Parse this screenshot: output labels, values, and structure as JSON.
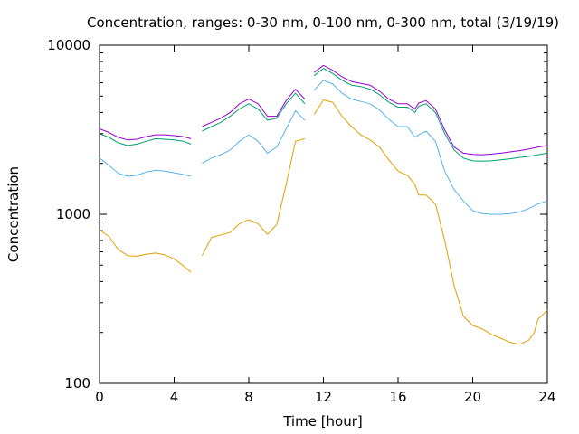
{
  "chart_data": {
    "type": "line",
    "title": "Concentration, ranges: 0-30 nm, 0-100 nm, 0-300 nm, total (3/19/19)",
    "xlabel": "Time [hour]",
    "ylabel": "Concentration",
    "xlim": [
      0,
      24
    ],
    "ylim": [
      100,
      10000
    ],
    "yscale": "log",
    "grid": false,
    "legend": "none",
    "x_ticks": [
      "0",
      "4",
      "8",
      "12",
      "16",
      "20",
      "24"
    ],
    "y_ticks": [
      "100",
      "1000",
      "10000"
    ],
    "series": [
      {
        "color": "#e69f00",
        "x": [
          0,
          0.5,
          1,
          1.5,
          2,
          2.5,
          3,
          3.5,
          4,
          4.5,
          4.9,
          5.2,
          5.5,
          6,
          6.5,
          7,
          7.5,
          8,
          8.5,
          9,
          9.5,
          10,
          10.5,
          11,
          11.2,
          11.5,
          12,
          12.5,
          13,
          13.5,
          14,
          14.5,
          15,
          15.5,
          16,
          16.5,
          16.9,
          17.1,
          17.5,
          18,
          18.5,
          19,
          19.5,
          20,
          20.5,
          21,
          21.5,
          22,
          22.5,
          23,
          23.3,
          23.5,
          24
        ],
        "y": [
          810,
          740,
          620,
          570,
          565,
          580,
          590,
          575,
          545,
          495,
          455,
          null,
          570,
          730,
          755,
          780,
          880,
          930,
          880,
          760,
          870,
          1500,
          2700,
          2800,
          null,
          3900,
          4750,
          4600,
          3800,
          3300,
          2950,
          2750,
          2500,
          2100,
          1800,
          1700,
          1500,
          1300,
          1300,
          1150,
          700,
          380,
          250,
          220,
          210,
          195,
          185,
          175,
          170,
          180,
          200,
          240,
          270
        ]
      },
      {
        "color": "#56b4e9",
        "x": [
          0,
          0.5,
          1,
          1.5,
          2,
          2.5,
          3,
          3.5,
          4,
          4.5,
          4.9,
          5.2,
          5.5,
          6,
          6.5,
          7,
          7.5,
          8,
          8.5,
          9,
          9.5,
          10,
          10.5,
          11,
          11.2,
          11.5,
          12,
          12.5,
          13,
          13.5,
          14,
          14.5,
          15,
          15.5,
          16,
          16.5,
          16.9,
          17.1,
          17.5,
          18,
          18.5,
          19,
          19.5,
          20,
          20.5,
          21,
          21.5,
          22,
          22.5,
          23,
          23.5,
          24
        ],
        "y": [
          2150,
          1950,
          1750,
          1680,
          1700,
          1780,
          1820,
          1800,
          1760,
          1720,
          1680,
          null,
          2000,
          2150,
          2250,
          2400,
          2700,
          2950,
          2700,
          2300,
          2500,
          3200,
          4100,
          3600,
          null,
          5400,
          6200,
          5900,
          5200,
          4800,
          4650,
          4500,
          4150,
          3650,
          3300,
          3300,
          2850,
          2950,
          3100,
          2700,
          1800,
          1400,
          1200,
          1050,
          1010,
          1000,
          1000,
          1010,
          1030,
          1080,
          1150,
          1200
        ]
      },
      {
        "color": "#009e73",
        "x": [
          0,
          0.5,
          1,
          1.5,
          2,
          2.5,
          3,
          3.5,
          4,
          4.5,
          4.9,
          5.2,
          5.5,
          6,
          6.5,
          7,
          7.5,
          8,
          8.5,
          9,
          9.5,
          10,
          10.5,
          11,
          11.2,
          11.5,
          12,
          12.5,
          13,
          13.5,
          14,
          14.5,
          15,
          15.5,
          16,
          16.5,
          16.9,
          17.1,
          17.5,
          18,
          18.5,
          19,
          19.5,
          20,
          20.5,
          21,
          21.5,
          22,
          22.5,
          23,
          23.5,
          24
        ],
        "y": [
          3000,
          2850,
          2650,
          2550,
          2600,
          2700,
          2800,
          2780,
          2750,
          2700,
          2600,
          null,
          3100,
          3300,
          3500,
          3800,
          4200,
          4500,
          4200,
          3600,
          3700,
          4500,
          5200,
          4500,
          null,
          6600,
          7300,
          6800,
          6200,
          5800,
          5700,
          5500,
          5100,
          4600,
          4300,
          4300,
          4000,
          4350,
          4500,
          4000,
          3000,
          2400,
          2150,
          2070,
          2060,
          2070,
          2100,
          2130,
          2170,
          2200,
          2250,
          2300
        ]
      },
      {
        "color": "#9400d3",
        "x": [
          0,
          0.5,
          1,
          1.5,
          2,
          2.5,
          3,
          3.5,
          4,
          4.5,
          4.9,
          5.2,
          5.5,
          6,
          6.5,
          7,
          7.5,
          8,
          8.5,
          9,
          9.5,
          10,
          10.5,
          11,
          11.2,
          11.5,
          12,
          12.5,
          13,
          13.5,
          14,
          14.5,
          15,
          15.5,
          16,
          16.5,
          16.9,
          17.1,
          17.5,
          18,
          18.5,
          19,
          19.5,
          20,
          20.5,
          21,
          21.5,
          22,
          22.5,
          23,
          23.5,
          24
        ],
        "y": [
          3200,
          3050,
          2850,
          2750,
          2780,
          2880,
          2950,
          2950,
          2920,
          2880,
          2800,
          null,
          3300,
          3500,
          3700,
          4000,
          4500,
          4800,
          4500,
          3800,
          3800,
          4700,
          5500,
          4800,
          null,
          6900,
          7600,
          7100,
          6500,
          6100,
          5950,
          5800,
          5350,
          4800,
          4500,
          4500,
          4200,
          4550,
          4700,
          4200,
          3150,
          2500,
          2300,
          2260,
          2250,
          2270,
          2300,
          2340,
          2380,
          2430,
          2500,
          2550
        ]
      }
    ]
  }
}
